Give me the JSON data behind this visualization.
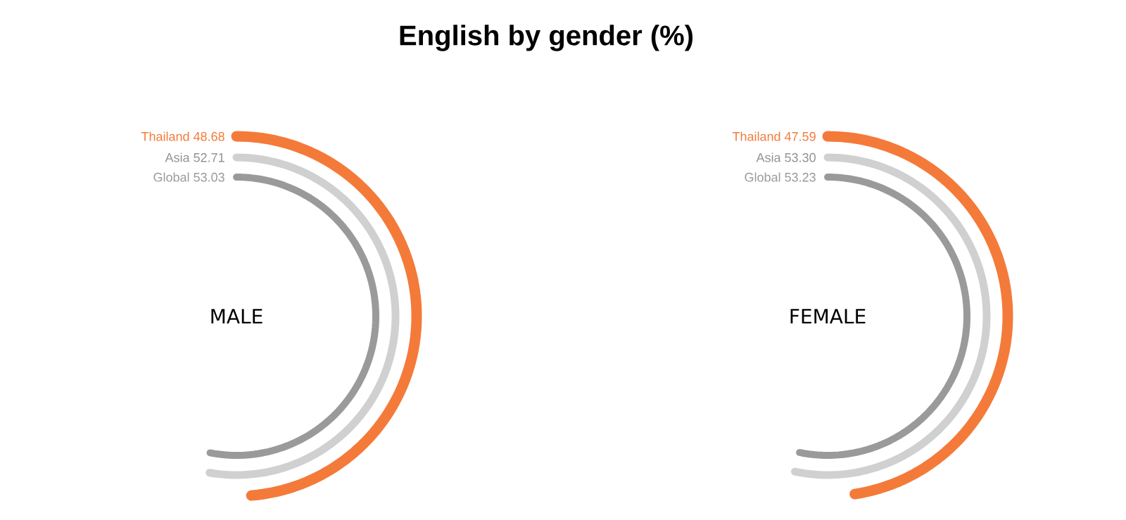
{
  "chart_data": [
    {
      "type": "other",
      "title": "English by gender (%)",
      "subtitle": "MALE",
      "categories": [
        "Thailand",
        "Asia",
        "Global"
      ],
      "values": [
        48.68,
        52.71,
        53.03
      ],
      "value_labels": [
        "48.68",
        "52.71",
        "53.03"
      ],
      "colors": [
        "#f47a3a",
        "#d0d0d0",
        "#9a9a9a"
      ]
    },
    {
      "type": "other",
      "subtitle": "FEMALE",
      "categories": [
        "Thailand",
        "Asia",
        "Global"
      ],
      "values": [
        47.59,
        53.3,
        53.23
      ],
      "value_labels": [
        "47.59",
        "53.30",
        "53.23"
      ],
      "colors": [
        "#f47a3a",
        "#d0d0d0",
        "#9a9a9a"
      ]
    }
  ]
}
